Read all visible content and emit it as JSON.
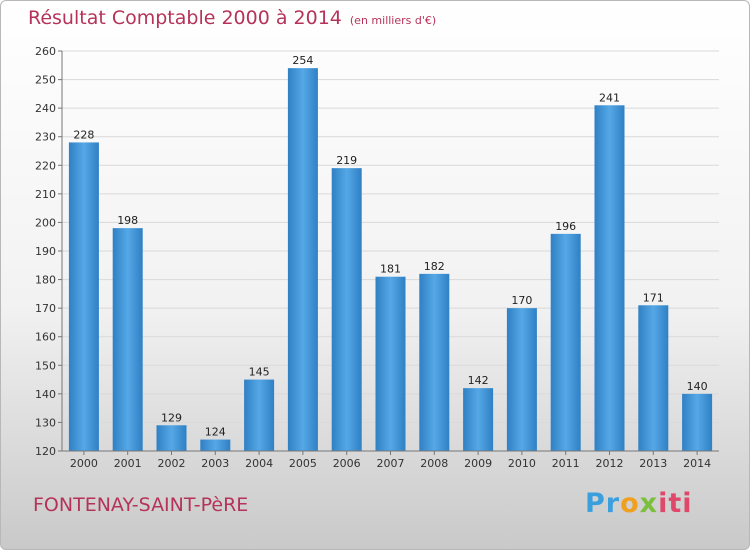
{
  "chart_data": {
    "type": "bar",
    "title": "Résultat Comptable 2000 à 2014",
    "subtitle": "(en milliers d'€)",
    "categories": [
      "2000",
      "2001",
      "2002",
      "2003",
      "2004",
      "2005",
      "2006",
      "2007",
      "2008",
      "2009",
      "2010",
      "2011",
      "2012",
      "2013",
      "2014"
    ],
    "values": [
      228,
      198,
      129,
      124,
      145,
      254,
      219,
      181,
      182,
      142,
      170,
      196,
      241,
      171,
      140
    ],
    "ylim": [
      120,
      260
    ],
    "yticks": [
      120,
      130,
      140,
      150,
      160,
      170,
      180,
      190,
      200,
      210,
      220,
      230,
      240,
      250,
      260
    ],
    "grid": true,
    "bar_color": "#3a94d6"
  },
  "footer": {
    "place": "FONTENAY-SAINT-PèRE",
    "logo": {
      "p1": "Pr",
      "p2": "o",
      "p3": "x",
      "p4": "iti"
    }
  }
}
